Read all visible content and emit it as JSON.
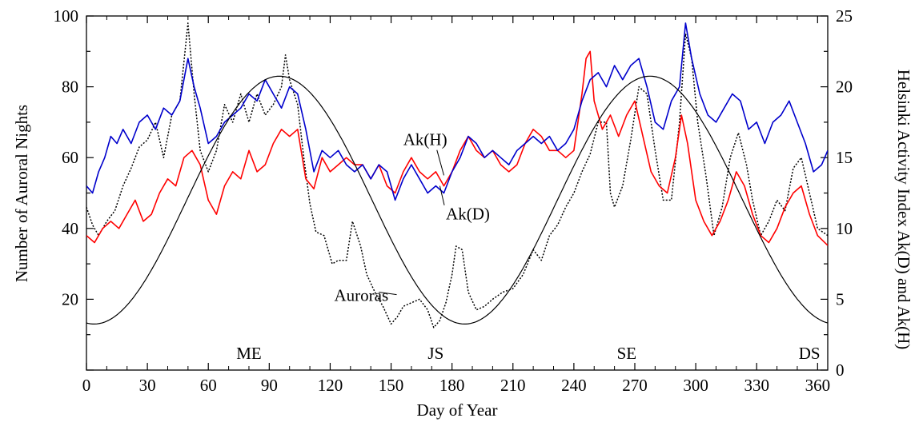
{
  "chart_data": {
    "type": "line",
    "title": "",
    "xlabel": "Day of Year",
    "ylabel_left": "Number of Auroral Nights",
    "ylabel_right": "Helsinki Activity Index Ak(D) and Ak(H)",
    "xlim": [
      0,
      365
    ],
    "ylim_left": [
      0,
      100
    ],
    "ylim_right": [
      0,
      25
    ],
    "grid": false,
    "legend": "none",
    "x_ticks": [
      "0",
      "30",
      "60",
      "90",
      "120",
      "150",
      "180",
      "210",
      "240",
      "270",
      "300",
      "330",
      "360"
    ],
    "y_left_ticks": [
      "20",
      "40",
      "60",
      "80",
      "100"
    ],
    "y_right_ticks": [
      "0",
      "5",
      "10",
      "15",
      "20",
      "25"
    ],
    "season_labels": [
      {
        "text": "ME",
        "x": 80
      },
      {
        "text": "JS",
        "x": 172
      },
      {
        "text": "SE",
        "x": 266
      },
      {
        "text": "DS",
        "x": 356
      }
    ],
    "series": [
      {
        "name": "Auroras",
        "axis": "left",
        "style": "dotted",
        "color": "#000000",
        "points": [
          [
            0,
            46
          ],
          [
            3,
            41
          ],
          [
            6,
            38
          ],
          [
            10,
            42
          ],
          [
            14,
            45
          ],
          [
            18,
            52
          ],
          [
            22,
            57
          ],
          [
            26,
            63
          ],
          [
            30,
            65
          ],
          [
            34,
            70
          ],
          [
            38,
            60
          ],
          [
            42,
            72
          ],
          [
            46,
            76
          ],
          [
            50,
            98
          ],
          [
            53,
            78
          ],
          [
            56,
            62
          ],
          [
            60,
            56
          ],
          [
            64,
            62
          ],
          [
            68,
            75
          ],
          [
            72,
            70
          ],
          [
            76,
            78
          ],
          [
            80,
            70
          ],
          [
            84,
            78
          ],
          [
            88,
            72
          ],
          [
            92,
            75
          ],
          [
            96,
            80
          ],
          [
            98,
            89
          ],
          [
            100,
            82
          ],
          [
            104,
            75
          ],
          [
            107,
            60
          ],
          [
            110,
            47
          ],
          [
            113,
            39
          ],
          [
            117,
            38
          ],
          [
            121,
            30
          ],
          [
            124,
            31
          ],
          [
            128,
            31
          ],
          [
            131,
            42
          ],
          [
            135,
            35
          ],
          [
            138,
            27
          ],
          [
            142,
            22
          ],
          [
            146,
            18
          ],
          [
            150,
            13
          ],
          [
            153,
            15
          ],
          [
            156,
            18
          ],
          [
            160,
            19
          ],
          [
            164,
            20
          ],
          [
            168,
            17
          ],
          [
            171,
            12
          ],
          [
            174,
            14
          ],
          [
            177,
            19
          ],
          [
            180,
            27
          ],
          [
            182,
            35
          ],
          [
            185,
            34
          ],
          [
            188,
            22
          ],
          [
            192,
            17
          ],
          [
            196,
            18
          ],
          [
            200,
            20
          ],
          [
            205,
            22
          ],
          [
            210,
            23
          ],
          [
            215,
            27
          ],
          [
            220,
            34
          ],
          [
            224,
            31
          ],
          [
            228,
            38
          ],
          [
            232,
            41
          ],
          [
            236,
            46
          ],
          [
            240,
            50
          ],
          [
            244,
            56
          ],
          [
            248,
            61
          ],
          [
            252,
            70
          ],
          [
            256,
            70
          ],
          [
            258,
            50
          ],
          [
            260,
            46
          ],
          [
            264,
            52
          ],
          [
            268,
            65
          ],
          [
            272,
            80
          ],
          [
            276,
            78
          ],
          [
            280,
            62
          ],
          [
            284,
            48
          ],
          [
            288,
            48
          ],
          [
            292,
            70
          ],
          [
            295,
            95
          ],
          [
            298,
            88
          ],
          [
            301,
            70
          ],
          [
            305,
            55
          ],
          [
            309,
            38
          ],
          [
            313,
            46
          ],
          [
            317,
            60
          ],
          [
            321,
            67
          ],
          [
            325,
            58
          ],
          [
            328,
            48
          ],
          [
            332,
            38
          ],
          [
            336,
            42
          ],
          [
            340,
            48
          ],
          [
            344,
            45
          ],
          [
            348,
            57
          ],
          [
            352,
            60
          ],
          [
            356,
            50
          ],
          [
            360,
            40
          ],
          [
            365,
            38
          ]
        ]
      },
      {
        "name": "Ak(H)",
        "axis": "right",
        "style": "solid",
        "color": "#ff0000",
        "points": [
          [
            0,
            9.5
          ],
          [
            4,
            9.0
          ],
          [
            8,
            10.0
          ],
          [
            12,
            10.5
          ],
          [
            16,
            10.0
          ],
          [
            20,
            11.0
          ],
          [
            24,
            12.0
          ],
          [
            28,
            10.5
          ],
          [
            32,
            11.0
          ],
          [
            36,
            12.5
          ],
          [
            40,
            13.5
          ],
          [
            44,
            13.0
          ],
          [
            48,
            15.0
          ],
          [
            52,
            15.5
          ],
          [
            56,
            14.5
          ],
          [
            60,
            12.0
          ],
          [
            64,
            11.0
          ],
          [
            68,
            13.0
          ],
          [
            72,
            14.0
          ],
          [
            76,
            13.5
          ],
          [
            80,
            15.5
          ],
          [
            84,
            14.0
          ],
          [
            88,
            14.5
          ],
          [
            92,
            16.0
          ],
          [
            96,
            17.0
          ],
          [
            100,
            16.5
          ],
          [
            104,
            17.0
          ],
          [
            108,
            13.5
          ],
          [
            112,
            12.8
          ],
          [
            116,
            15.0
          ],
          [
            120,
            14.0
          ],
          [
            124,
            14.5
          ],
          [
            128,
            15.0
          ],
          [
            132,
            14.5
          ],
          [
            136,
            14.5
          ],
          [
            140,
            13.5
          ],
          [
            144,
            14.5
          ],
          [
            148,
            13.0
          ],
          [
            152,
            12.5
          ],
          [
            156,
            14.0
          ],
          [
            160,
            15.0
          ],
          [
            164,
            14.0
          ],
          [
            168,
            13.5
          ],
          [
            172,
            14.0
          ],
          [
            176,
            13.0
          ],
          [
            180,
            14.0
          ],
          [
            184,
            15.5
          ],
          [
            188,
            16.5
          ],
          [
            192,
            15.5
          ],
          [
            196,
            15.0
          ],
          [
            200,
            15.5
          ],
          [
            204,
            14.5
          ],
          [
            208,
            14.0
          ],
          [
            212,
            14.5
          ],
          [
            216,
            16.0
          ],
          [
            220,
            17.0
          ],
          [
            224,
            16.5
          ],
          [
            228,
            15.5
          ],
          [
            232,
            15.5
          ],
          [
            236,
            15.0
          ],
          [
            240,
            15.5
          ],
          [
            244,
            19.5
          ],
          [
            246,
            22.0
          ],
          [
            248,
            22.5
          ],
          [
            250,
            19.0
          ],
          [
            254,
            17.0
          ],
          [
            258,
            18.0
          ],
          [
            262,
            16.5
          ],
          [
            266,
            18.0
          ],
          [
            270,
            19.0
          ],
          [
            274,
            16.5
          ],
          [
            278,
            14.0
          ],
          [
            282,
            13.0
          ],
          [
            286,
            12.5
          ],
          [
            290,
            15.0
          ],
          [
            293,
            18.0
          ],
          [
            296,
            16.0
          ],
          [
            300,
            12.0
          ],
          [
            304,
            10.5
          ],
          [
            308,
            9.5
          ],
          [
            312,
            10.5
          ],
          [
            316,
            12.0
          ],
          [
            320,
            14.0
          ],
          [
            324,
            13.0
          ],
          [
            328,
            11.0
          ],
          [
            332,
            9.5
          ],
          [
            336,
            9.0
          ],
          [
            340,
            10.0
          ],
          [
            344,
            11.5
          ],
          [
            348,
            12.5
          ],
          [
            352,
            13.0
          ],
          [
            356,
            11.0
          ],
          [
            360,
            9.5
          ],
          [
            365,
            8.8
          ]
        ]
      },
      {
        "name": "Ak(D)",
        "axis": "right",
        "style": "solid",
        "color": "#0000cc",
        "points": [
          [
            0,
            13.0
          ],
          [
            3,
            12.5
          ],
          [
            6,
            14.0
          ],
          [
            9,
            15.0
          ],
          [
            12,
            16.5
          ],
          [
            15,
            16.0
          ],
          [
            18,
            17.0
          ],
          [
            22,
            16.0
          ],
          [
            26,
            17.5
          ],
          [
            30,
            18.0
          ],
          [
            34,
            17.0
          ],
          [
            38,
            18.5
          ],
          [
            42,
            18.0
          ],
          [
            46,
            19.0
          ],
          [
            50,
            22.0
          ],
          [
            53,
            20.0
          ],
          [
            56,
            18.5
          ],
          [
            60,
            16.0
          ],
          [
            64,
            16.5
          ],
          [
            68,
            17.5
          ],
          [
            72,
            18.0
          ],
          [
            76,
            18.5
          ],
          [
            80,
            19.5
          ],
          [
            84,
            19.0
          ],
          [
            88,
            20.5
          ],
          [
            92,
            19.5
          ],
          [
            96,
            18.5
          ],
          [
            100,
            20.0
          ],
          [
            104,
            19.5
          ],
          [
            108,
            17.0
          ],
          [
            112,
            14.0
          ],
          [
            116,
            15.5
          ],
          [
            120,
            15.0
          ],
          [
            124,
            15.5
          ],
          [
            128,
            14.5
          ],
          [
            132,
            14.0
          ],
          [
            136,
            14.5
          ],
          [
            140,
            13.5
          ],
          [
            144,
            14.5
          ],
          [
            148,
            14.0
          ],
          [
            152,
            12.0
          ],
          [
            156,
            13.5
          ],
          [
            160,
            14.5
          ],
          [
            164,
            13.5
          ],
          [
            168,
            12.5
          ],
          [
            172,
            13.0
          ],
          [
            176,
            12.5
          ],
          [
            180,
            14.0
          ],
          [
            184,
            15.0
          ],
          [
            188,
            16.5
          ],
          [
            192,
            16.0
          ],
          [
            196,
            15.0
          ],
          [
            200,
            15.5
          ],
          [
            204,
            15.0
          ],
          [
            208,
            14.5
          ],
          [
            212,
            15.5
          ],
          [
            216,
            16.0
          ],
          [
            220,
            16.5
          ],
          [
            224,
            16.0
          ],
          [
            228,
            16.5
          ],
          [
            232,
            15.5
          ],
          [
            236,
            16.0
          ],
          [
            240,
            17.0
          ],
          [
            244,
            19.0
          ],
          [
            248,
            20.5
          ],
          [
            252,
            21.0
          ],
          [
            256,
            20.0
          ],
          [
            260,
            21.5
          ],
          [
            264,
            20.5
          ],
          [
            268,
            21.5
          ],
          [
            272,
            22.0
          ],
          [
            276,
            20.0
          ],
          [
            280,
            17.5
          ],
          [
            284,
            17.0
          ],
          [
            288,
            19.0
          ],
          [
            292,
            20.0
          ],
          [
            295,
            24.5
          ],
          [
            298,
            22.0
          ],
          [
            302,
            19.5
          ],
          [
            306,
            18.0
          ],
          [
            310,
            17.5
          ],
          [
            314,
            18.5
          ],
          [
            318,
            19.5
          ],
          [
            322,
            19.0
          ],
          [
            326,
            17.0
          ],
          [
            330,
            17.5
          ],
          [
            334,
            16.0
          ],
          [
            338,
            17.5
          ],
          [
            342,
            18.0
          ],
          [
            346,
            19.0
          ],
          [
            350,
            17.5
          ],
          [
            354,
            16.0
          ],
          [
            358,
            14.0
          ],
          [
            362,
            14.5
          ],
          [
            365,
            15.5
          ]
        ]
      },
      {
        "name": "",
        "axis": "left",
        "style": "solid-thin",
        "color": "#000000",
        "curve": "sinusoid",
        "mean": 48,
        "amplitude": 35,
        "period_days": 182.5,
        "peak_day": 95
      }
    ],
    "annotations": [
      {
        "text": "Ak(H)",
        "label_x": 156,
        "label_y": 63.5,
        "arrow_to": [
          176,
          55
        ]
      },
      {
        "text": "Ak(D)",
        "label_x": 177,
        "label_y": 42.5,
        "arrow_to": [
          174,
          52
        ]
      },
      {
        "text": "Auroras",
        "label_x": 122,
        "label_y": 19.5,
        "arrow_to": [
          144,
          22
        ]
      }
    ]
  }
}
